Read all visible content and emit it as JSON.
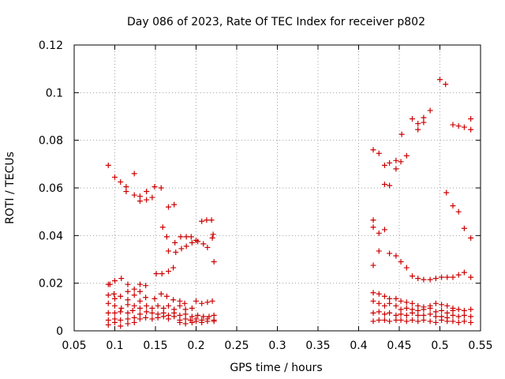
{
  "chart_data": {
    "type": "scatter",
    "title": "Day 086 of 2023, Rate Of TEC Index for receiver p802",
    "xlabel": "GPS time / hours",
    "ylabel": "ROTI / TECUs",
    "xlim": [
      0.05,
      0.55
    ],
    "ylim": [
      0,
      0.12
    ],
    "x_ticks": [
      0.05,
      0.1,
      0.15,
      0.2,
      0.25,
      0.3,
      0.35,
      0.4,
      0.45,
      0.5,
      0.55
    ],
    "x_tick_labels": [
      "0.05",
      "0.1",
      "0.15",
      "0.2",
      "0.25",
      "0.3",
      "0.35",
      "0.4",
      "0.45",
      "0.5",
      "0.55"
    ],
    "y_ticks": [
      0,
      0.02,
      0.04,
      0.06,
      0.08,
      0.1,
      0.12
    ],
    "y_tick_labels": [
      "0",
      "0.02",
      "0.04",
      "0.06",
      "0.08",
      "0.1",
      "0.12"
    ],
    "grid": true,
    "marker": "+",
    "color": "#cc0000",
    "series": [
      {
        "name": "ROTI",
        "points": [
          [
            0.092,
            0.0695
          ],
          [
            0.1,
            0.0645
          ],
          [
            0.107,
            0.0625
          ],
          [
            0.114,
            0.0605
          ],
          [
            0.114,
            0.0585
          ],
          [
            0.124,
            0.066
          ],
          [
            0.124,
            0.057
          ],
          [
            0.131,
            0.0565
          ],
          [
            0.131,
            0.0545
          ],
          [
            0.139,
            0.0585
          ],
          [
            0.139,
            0.055
          ],
          [
            0.146,
            0.056
          ],
          [
            0.149,
            0.0605
          ],
          [
            0.157,
            0.06
          ],
          [
            0.159,
            0.0435
          ],
          [
            0.166,
            0.052
          ],
          [
            0.173,
            0.053
          ],
          [
            0.164,
            0.0395
          ],
          [
            0.166,
            0.0335
          ],
          [
            0.174,
            0.037
          ],
          [
            0.175,
            0.033
          ],
          [
            0.181,
            0.0395
          ],
          [
            0.182,
            0.0345
          ],
          [
            0.188,
            0.0395
          ],
          [
            0.188,
            0.0355
          ],
          [
            0.194,
            0.0395
          ],
          [
            0.195,
            0.037
          ],
          [
            0.2,
            0.038
          ],
          [
            0.202,
            0.0375
          ],
          [
            0.207,
            0.046
          ],
          [
            0.209,
            0.0365
          ],
          [
            0.213,
            0.0465
          ],
          [
            0.214,
            0.035
          ],
          [
            0.219,
            0.0465
          ],
          [
            0.22,
            0.039
          ],
          [
            0.221,
            0.0405
          ],
          [
            0.222,
            0.029
          ],
          [
            0.151,
            0.024
          ],
          [
            0.158,
            0.024
          ],
          [
            0.166,
            0.025
          ],
          [
            0.172,
            0.0265
          ],
          [
            0.092,
            0.0195
          ],
          [
            0.094,
            0.0195
          ],
          [
            0.1,
            0.021
          ],
          [
            0.108,
            0.022
          ],
          [
            0.116,
            0.0195
          ],
          [
            0.124,
            0.0175
          ],
          [
            0.131,
            0.0195
          ],
          [
            0.138,
            0.019
          ],
          [
            0.092,
            0.015
          ],
          [
            0.099,
            0.0155
          ],
          [
            0.1,
            0.0135
          ],
          [
            0.107,
            0.0145
          ],
          [
            0.116,
            0.0165
          ],
          [
            0.116,
            0.013
          ],
          [
            0.124,
            0.015
          ],
          [
            0.131,
            0.0165
          ],
          [
            0.131,
            0.0125
          ],
          [
            0.138,
            0.014
          ],
          [
            0.149,
            0.0135
          ],
          [
            0.157,
            0.0155
          ],
          [
            0.164,
            0.0145
          ],
          [
            0.172,
            0.013
          ],
          [
            0.18,
            0.0125
          ],
          [
            0.186,
            0.0115
          ],
          [
            0.2,
            0.0125
          ],
          [
            0.207,
            0.0115
          ],
          [
            0.214,
            0.012
          ],
          [
            0.22,
            0.0125
          ],
          [
            0.092,
            0.0115
          ],
          [
            0.1,
            0.0105
          ],
          [
            0.108,
            0.0095
          ],
          [
            0.116,
            0.011
          ],
          [
            0.124,
            0.0105
          ],
          [
            0.131,
            0.0095
          ],
          [
            0.139,
            0.0105
          ],
          [
            0.146,
            0.0095
          ],
          [
            0.153,
            0.0105
          ],
          [
            0.16,
            0.0095
          ],
          [
            0.166,
            0.0105
          ],
          [
            0.173,
            0.009
          ],
          [
            0.18,
            0.0105
          ],
          [
            0.187,
            0.009
          ],
          [
            0.195,
            0.0095
          ],
          [
            0.092,
            0.0075
          ],
          [
            0.1,
            0.0075
          ],
          [
            0.107,
            0.008
          ],
          [
            0.116,
            0.0075
          ],
          [
            0.122,
            0.0085
          ],
          [
            0.131,
            0.007
          ],
          [
            0.139,
            0.008
          ],
          [
            0.146,
            0.0075
          ],
          [
            0.153,
            0.007
          ],
          [
            0.16,
            0.0075
          ],
          [
            0.166,
            0.0065
          ],
          [
            0.173,
            0.0075
          ],
          [
            0.18,
            0.0065
          ],
          [
            0.187,
            0.007
          ],
          [
            0.195,
            0.006
          ],
          [
            0.202,
            0.0065
          ],
          [
            0.209,
            0.006
          ],
          [
            0.216,
            0.006
          ],
          [
            0.222,
            0.0065
          ],
          [
            0.092,
            0.0045
          ],
          [
            0.1,
            0.005
          ],
          [
            0.107,
            0.0045
          ],
          [
            0.116,
            0.005
          ],
          [
            0.124,
            0.0055
          ],
          [
            0.131,
            0.005
          ],
          [
            0.138,
            0.0055
          ],
          [
            0.146,
            0.005
          ],
          [
            0.153,
            0.0055
          ],
          [
            0.16,
            0.006
          ],
          [
            0.166,
            0.005
          ],
          [
            0.173,
            0.006
          ],
          [
            0.18,
            0.0045
          ],
          [
            0.187,
            0.005
          ],
          [
            0.193,
            0.0045
          ],
          [
            0.2,
            0.005
          ],
          [
            0.207,
            0.0045
          ],
          [
            0.214,
            0.005
          ],
          [
            0.222,
            0.0045
          ],
          [
            0.092,
            0.0025
          ],
          [
            0.1,
            0.0035
          ],
          [
            0.107,
            0.002
          ],
          [
            0.116,
            0.003
          ],
          [
            0.124,
            0.0035
          ],
          [
            0.18,
            0.0035
          ],
          [
            0.187,
            0.003
          ],
          [
            0.195,
            0.0035
          ],
          [
            0.2,
            0.004
          ],
          [
            0.207,
            0.0035
          ],
          [
            0.214,
            0.004
          ],
          [
            0.222,
            0.004
          ],
          [
            0.418,
            0.076
          ],
          [
            0.425,
            0.0745
          ],
          [
            0.432,
            0.0695
          ],
          [
            0.438,
            0.0705
          ],
          [
            0.446,
            0.0715
          ],
          [
            0.446,
            0.068
          ],
          [
            0.452,
            0.071
          ],
          [
            0.459,
            0.0735
          ],
          [
            0.453,
            0.0825
          ],
          [
            0.466,
            0.089
          ],
          [
            0.473,
            0.087
          ],
          [
            0.473,
            0.0845
          ],
          [
            0.48,
            0.0895
          ],
          [
            0.48,
            0.0875
          ],
          [
            0.488,
            0.0925
          ],
          [
            0.5,
            0.1055
          ],
          [
            0.507,
            0.1035
          ],
          [
            0.516,
            0.0865
          ],
          [
            0.523,
            0.086
          ],
          [
            0.53,
            0.0855
          ],
          [
            0.538,
            0.089
          ],
          [
            0.538,
            0.0845
          ],
          [
            0.432,
            0.0615
          ],
          [
            0.438,
            0.061
          ],
          [
            0.418,
            0.0465
          ],
          [
            0.418,
            0.0435
          ],
          [
            0.425,
            0.041
          ],
          [
            0.432,
            0.0425
          ],
          [
            0.508,
            0.058
          ],
          [
            0.516,
            0.0525
          ],
          [
            0.523,
            0.05
          ],
          [
            0.53,
            0.043
          ],
          [
            0.538,
            0.039
          ],
          [
            0.418,
            0.0275
          ],
          [
            0.425,
            0.0335
          ],
          [
            0.438,
            0.0325
          ],
          [
            0.446,
            0.0315
          ],
          [
            0.452,
            0.029
          ],
          [
            0.459,
            0.0265
          ],
          [
            0.466,
            0.023
          ],
          [
            0.473,
            0.022
          ],
          [
            0.48,
            0.0215
          ],
          [
            0.488,
            0.0215
          ],
          [
            0.495,
            0.022
          ],
          [
            0.502,
            0.0225
          ],
          [
            0.509,
            0.0225
          ],
          [
            0.516,
            0.0225
          ],
          [
            0.523,
            0.0235
          ],
          [
            0.53,
            0.0245
          ],
          [
            0.538,
            0.0225
          ],
          [
            0.418,
            0.016
          ],
          [
            0.425,
            0.0155
          ],
          [
            0.432,
            0.0145
          ],
          [
            0.438,
            0.0135
          ],
          [
            0.446,
            0.0135
          ],
          [
            0.452,
            0.0125
          ],
          [
            0.459,
            0.012
          ],
          [
            0.466,
            0.0115
          ],
          [
            0.473,
            0.0105
          ],
          [
            0.48,
            0.01
          ],
          [
            0.488,
            0.0105
          ],
          [
            0.495,
            0.0115
          ],
          [
            0.502,
            0.011
          ],
          [
            0.509,
            0.0105
          ],
          [
            0.516,
            0.0095
          ],
          [
            0.418,
            0.0125
          ],
          [
            0.425,
            0.0115
          ],
          [
            0.432,
            0.0105
          ],
          [
            0.438,
            0.0115
          ],
          [
            0.446,
            0.0105
          ],
          [
            0.452,
            0.009
          ],
          [
            0.459,
            0.0095
          ],
          [
            0.466,
            0.009
          ],
          [
            0.473,
            0.0085
          ],
          [
            0.48,
            0.009
          ],
          [
            0.488,
            0.0095
          ],
          [
            0.495,
            0.008
          ],
          [
            0.502,
            0.0085
          ],
          [
            0.509,
            0.0075
          ],
          [
            0.516,
            0.0085
          ],
          [
            0.523,
            0.009
          ],
          [
            0.53,
            0.0085
          ],
          [
            0.538,
            0.009
          ],
          [
            0.418,
            0.0075
          ],
          [
            0.425,
            0.008
          ],
          [
            0.432,
            0.007
          ],
          [
            0.438,
            0.0075
          ],
          [
            0.446,
            0.0065
          ],
          [
            0.452,
            0.007
          ],
          [
            0.459,
            0.0065
          ],
          [
            0.466,
            0.0075
          ],
          [
            0.473,
            0.0065
          ],
          [
            0.48,
            0.0065
          ],
          [
            0.488,
            0.007
          ],
          [
            0.495,
            0.006
          ],
          [
            0.502,
            0.006
          ],
          [
            0.509,
            0.0055
          ],
          [
            0.516,
            0.0065
          ],
          [
            0.523,
            0.006
          ],
          [
            0.53,
            0.0065
          ],
          [
            0.538,
            0.006
          ],
          [
            0.418,
            0.004
          ],
          [
            0.425,
            0.0045
          ],
          [
            0.432,
            0.0045
          ],
          [
            0.438,
            0.004
          ],
          [
            0.446,
            0.0045
          ],
          [
            0.452,
            0.0045
          ],
          [
            0.459,
            0.004
          ],
          [
            0.466,
            0.0045
          ],
          [
            0.473,
            0.004
          ],
          [
            0.48,
            0.0045
          ],
          [
            0.488,
            0.004
          ],
          [
            0.495,
            0.0035
          ],
          [
            0.502,
            0.0045
          ],
          [
            0.509,
            0.004
          ],
          [
            0.516,
            0.004
          ],
          [
            0.523,
            0.0035
          ],
          [
            0.53,
            0.004
          ],
          [
            0.538,
            0.0035
          ]
        ]
      }
    ]
  }
}
